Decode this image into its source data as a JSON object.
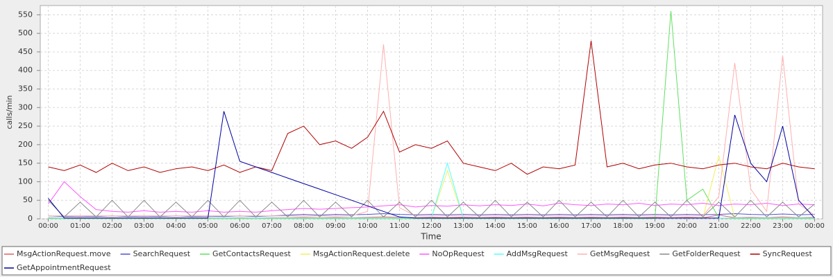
{
  "chart_data": {
    "type": "line",
    "x_label": "Time",
    "y_label": "calls/min",
    "x": [
      0,
      0.5,
      1,
      1.5,
      2,
      2.5,
      3,
      3.5,
      4,
      4.5,
      5,
      5.5,
      6,
      6.5,
      7,
      7.5,
      8,
      8.5,
      9,
      9.5,
      10,
      10.5,
      11,
      11.5,
      12,
      12.5,
      13,
      13.5,
      14,
      14.5,
      15,
      15.5,
      16,
      16.5,
      17,
      17.5,
      18,
      18.5,
      19,
      19.5,
      20,
      20.5,
      21,
      21.5,
      22,
      22.5,
      23,
      23.5,
      24
    ],
    "xlim": [
      -0.25,
      24.25
    ],
    "xticks": [
      {
        "value": 0,
        "label": "00:00"
      },
      {
        "value": 1,
        "label": "01:00"
      },
      {
        "value": 2,
        "label": "02:00"
      },
      {
        "value": 3,
        "label": "03:00"
      },
      {
        "value": 4,
        "label": "04:00"
      },
      {
        "value": 5,
        "label": "05:00"
      },
      {
        "value": 6,
        "label": "06:00"
      },
      {
        "value": 7,
        "label": "07:00"
      },
      {
        "value": 8,
        "label": "08:00"
      },
      {
        "value": 9,
        "label": "09:00"
      },
      {
        "value": 10,
        "label": "10:00"
      },
      {
        "value": 11,
        "label": "11:00"
      },
      {
        "value": 12,
        "label": "12:00"
      },
      {
        "value": 13,
        "label": "13:00"
      },
      {
        "value": 14,
        "label": "14:00"
      },
      {
        "value": 15,
        "label": "15:00"
      },
      {
        "value": 16,
        "label": "16:00"
      },
      {
        "value": 17,
        "label": "17:00"
      },
      {
        "value": 18,
        "label": "18:00"
      },
      {
        "value": 19,
        "label": "19:00"
      },
      {
        "value": 20,
        "label": "20:00"
      },
      {
        "value": 21,
        "label": "21:00"
      },
      {
        "value": 22,
        "label": "22:00"
      },
      {
        "value": 23,
        "label": "23:00"
      },
      {
        "value": 24,
        "label": "00:00"
      }
    ],
    "ylim": [
      0,
      575
    ],
    "yticks": [
      0,
      50,
      100,
      150,
      200,
      250,
      300,
      350,
      400,
      450,
      500,
      550
    ],
    "grid": true,
    "series": [
      {
        "name": "MsgActionRequest.move",
        "color": "#e06060",
        "values": [
          3,
          2,
          3,
          2,
          3,
          2,
          3,
          2,
          3,
          2,
          3,
          2,
          3,
          2,
          3,
          3,
          4,
          3,
          4,
          3,
          4,
          5,
          4,
          3,
          4,
          3,
          4,
          3,
          4,
          3,
          4,
          3,
          4,
          3,
          4,
          3,
          4,
          3,
          4,
          3,
          4,
          3,
          10,
          3,
          4,
          3,
          5,
          3,
          4
        ]
      },
      {
        "name": "SearchRequest",
        "color": "#5050d0",
        "values": [
          8,
          6,
          7,
          6,
          8,
          6,
          7,
          6,
          8,
          6,
          7,
          6,
          8,
          6,
          8,
          10,
          12,
          10,
          12,
          11,
          12,
          14,
          12,
          11,
          12,
          11,
          12,
          11,
          12,
          11,
          12,
          11,
          12,
          11,
          12,
          11,
          12,
          11,
          12,
          11,
          12,
          11,
          12,
          14,
          12,
          11,
          13,
          11,
          12
        ]
      },
      {
        "name": "GetContactsRequest",
        "color": "#60e060",
        "values": [
          1,
          1,
          1,
          1,
          1,
          1,
          1,
          1,
          1,
          1,
          1,
          1,
          1,
          1,
          1,
          1,
          1,
          1,
          1,
          1,
          1,
          1,
          1,
          1,
          1,
          1,
          1,
          1,
          1,
          1,
          1,
          1,
          1,
          1,
          1,
          1,
          1,
          1,
          1,
          560,
          50,
          80,
          2,
          1,
          1,
          1,
          1,
          1,
          1
        ]
      },
      {
        "name": "MsgActionRequest.delete",
        "color": "#f0f060",
        "values": [
          2,
          2,
          2,
          2,
          2,
          2,
          2,
          2,
          2,
          2,
          2,
          2,
          2,
          2,
          2,
          2,
          2,
          2,
          2,
          2,
          2,
          2,
          2,
          2,
          2,
          130,
          2,
          2,
          2,
          2,
          2,
          2,
          2,
          2,
          2,
          2,
          2,
          2,
          2,
          2,
          2,
          2,
          170,
          2,
          2,
          2,
          2,
          2,
          2
        ]
      },
      {
        "name": "NoOpRequest",
        "color": "#ff55ff",
        "values": [
          40,
          100,
          60,
          25,
          20,
          18,
          22,
          18,
          20,
          18,
          22,
          18,
          20,
          18,
          22,
          25,
          28,
          26,
          28,
          30,
          32,
          35,
          38,
          32,
          36,
          34,
          38,
          35,
          38,
          36,
          40,
          35,
          42,
          38,
          36,
          40,
          38,
          42,
          36,
          40,
          38,
          42,
          36,
          40,
          38,
          42,
          36,
          40,
          38
        ]
      },
      {
        "name": "AddMsgRequest",
        "color": "#55ffff",
        "values": [
          2,
          2,
          2,
          2,
          2,
          2,
          2,
          2,
          2,
          2,
          2,
          2,
          2,
          2,
          2,
          2,
          2,
          2,
          2,
          2,
          2,
          2,
          2,
          2,
          2,
          150,
          2,
          2,
          2,
          2,
          2,
          2,
          2,
          2,
          2,
          2,
          2,
          2,
          2,
          2,
          2,
          2,
          2,
          2,
          2,
          2,
          2,
          2,
          2
        ]
      },
      {
        "name": "GetMsgRequest",
        "color": "#ffafaf",
        "values": [
          8,
          8,
          8,
          8,
          8,
          8,
          8,
          8,
          8,
          8,
          8,
          8,
          8,
          8,
          8,
          8,
          8,
          8,
          8,
          8,
          20,
          470,
          30,
          8,
          8,
          8,
          8,
          8,
          8,
          8,
          8,
          8,
          8,
          8,
          8,
          8,
          8,
          8,
          8,
          8,
          8,
          8,
          60,
          420,
          80,
          20,
          440,
          40,
          10
        ]
      },
      {
        "name": "GetFolderRequest",
        "color": "#888888",
        "values": [
          50,
          5,
          45,
          5,
          50,
          5,
          50,
          5,
          45,
          5,
          50,
          5,
          50,
          5,
          45,
          5,
          50,
          5,
          45,
          5,
          50,
          5,
          45,
          5,
          50,
          5,
          45,
          5,
          50,
          5,
          45,
          5,
          50,
          5,
          45,
          5,
          50,
          5,
          45,
          5,
          50,
          5,
          45,
          5,
          50,
          5,
          45,
          5,
          40
        ]
      },
      {
        "name": "SyncRequest",
        "color": "#b00000",
        "values": [
          140,
          130,
          145,
          125,
          150,
          130,
          140,
          125,
          135,
          140,
          130,
          145,
          125,
          140,
          130,
          230,
          250,
          200,
          210,
          190,
          220,
          290,
          180,
          200,
          190,
          210,
          150,
          140,
          130,
          150,
          120,
          140,
          135,
          145,
          480,
          140,
          150,
          135,
          145,
          150,
          140,
          135,
          145,
          150,
          140,
          135,
          150,
          140,
          135
        ]
      },
      {
        "name": "GetAppointmentRequest",
        "color": "#0000a0",
        "values": [
          55,
          2,
          2,
          2,
          2,
          2,
          2,
          2,
          2,
          2,
          2,
          290,
          155,
          140,
          125,
          110,
          95,
          80,
          65,
          50,
          35,
          20,
          5,
          2,
          2,
          2,
          2,
          2,
          2,
          2,
          2,
          2,
          2,
          2,
          2,
          2,
          2,
          2,
          2,
          2,
          2,
          2,
          2,
          280,
          150,
          100,
          250,
          50,
          2
        ]
      }
    ]
  }
}
